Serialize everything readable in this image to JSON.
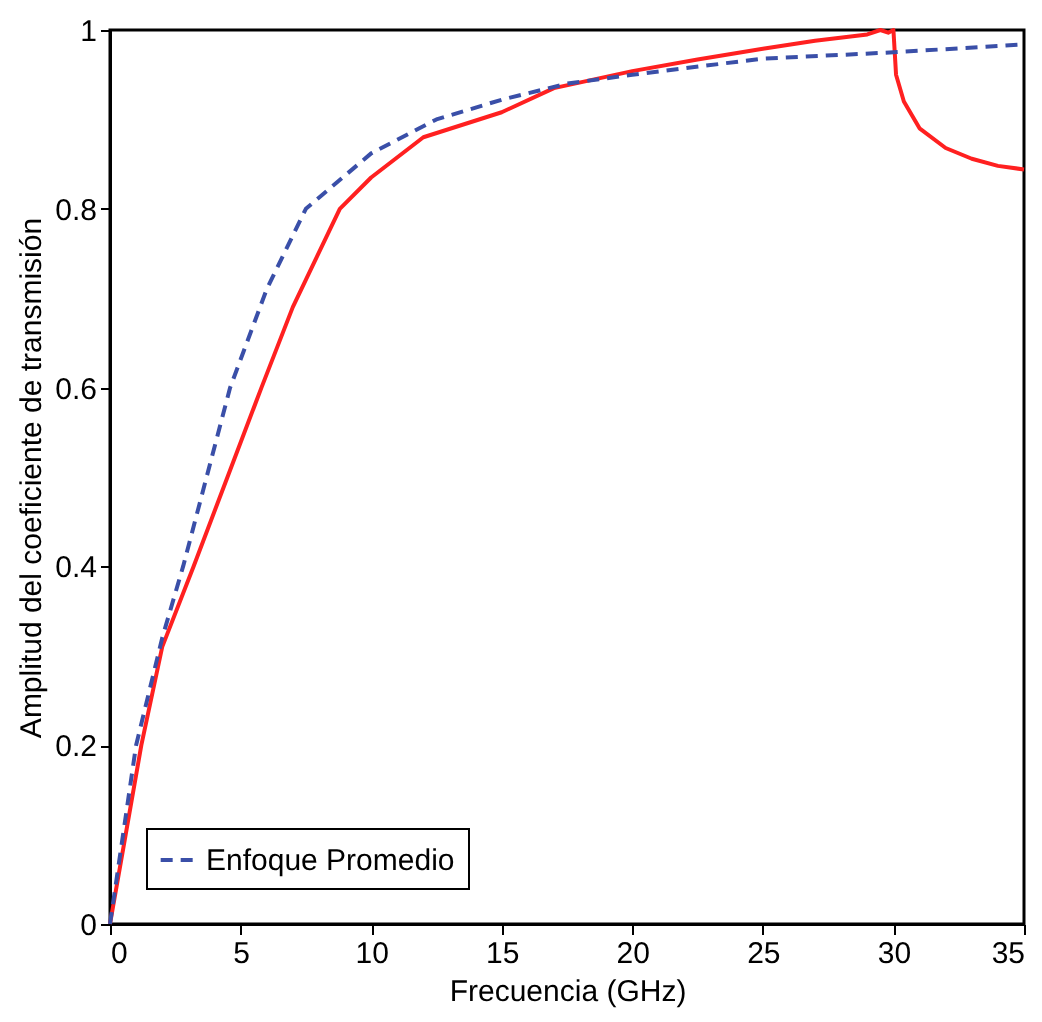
{
  "chart_data": {
    "type": "line",
    "xlabel": "Frecuencia (GHz)",
    "ylabel": "Amplitud del coeficiente de transmisión",
    "xlim": [
      0,
      35
    ],
    "ylim": [
      0,
      1
    ],
    "xticks": [
      0,
      5,
      10,
      15,
      20,
      25,
      30,
      35
    ],
    "yticks": [
      0,
      0.2,
      0.4,
      0.6,
      0.8,
      1
    ],
    "grid": false,
    "legend": "bottom left",
    "series": [
      {
        "color": "#ff2020",
        "line_style": "solid",
        "x": [
          0,
          0.6,
          1.2,
          2,
          3.2,
          4.5,
          5.8,
          7,
          8.8,
          10,
          12,
          15,
          17,
          20,
          22.5,
          25,
          27,
          29,
          29.5,
          29.8,
          30,
          30.1,
          30.4,
          31,
          32,
          33,
          34,
          35
        ],
        "values": [
          0,
          0.1,
          0.2,
          0.31,
          0.4,
          0.5,
          0.6,
          0.69,
          0.8,
          0.835,
          0.88,
          0.908,
          0.935,
          0.954,
          0.967,
          0.979,
          0.988,
          0.995,
          1.0,
          0.997,
          1.0,
          0.95,
          0.92,
          0.89,
          0.868,
          0.856,
          0.848,
          0.844
        ]
      },
      {
        "name": "Enfoque Promedio",
        "color": "#3a4fa8",
        "line_style": "dashed",
        "x": [
          0,
          0.5,
          1,
          2,
          2.8,
          3.7,
          4.6,
          6,
          7.5,
          10,
          12.5,
          15,
          17.5,
          20,
          25,
          30,
          35
        ],
        "values": [
          0,
          0.1,
          0.2,
          0.32,
          0.4,
          0.5,
          0.6,
          0.71,
          0.8,
          0.862,
          0.9,
          0.922,
          0.94,
          0.95,
          0.968,
          0.975,
          0.984
        ]
      }
    ]
  }
}
